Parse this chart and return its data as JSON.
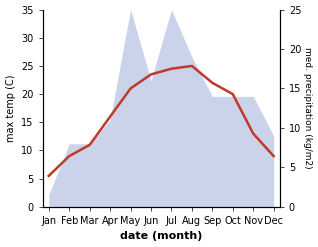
{
  "months": [
    "Jan",
    "Feb",
    "Mar",
    "Apr",
    "May",
    "Jun",
    "Jul",
    "Aug",
    "Sep",
    "Oct",
    "Nov",
    "Dec"
  ],
  "month_indices": [
    0,
    1,
    2,
    3,
    4,
    5,
    6,
    7,
    8,
    9,
    10,
    11
  ],
  "temp": [
    5.5,
    9.0,
    11.0,
    16.0,
    21.0,
    23.5,
    24.5,
    25.0,
    22.0,
    20.0,
    13.0,
    9.0
  ],
  "precip": [
    1.5,
    8.0,
    8.0,
    11.0,
    25.0,
    16.0,
    25.0,
    19.0,
    14.0,
    14.0,
    14.0,
    9.0
  ],
  "temp_color": "#c0392b",
  "precip_color": "#c5cfe8",
  "left_ylim": [
    0,
    35
  ],
  "right_ylim": [
    0,
    25
  ],
  "left_yticks": [
    0,
    5,
    10,
    15,
    20,
    25,
    30,
    35
  ],
  "right_yticks": [
    0,
    5,
    10,
    15,
    20,
    25
  ],
  "xlabel": "date (month)",
  "ylabel_left": "max temp (C)",
  "ylabel_right": "med. precipitation (kg/m2)",
  "temp_linewidth": 1.8,
  "background_color": "#ffffff"
}
